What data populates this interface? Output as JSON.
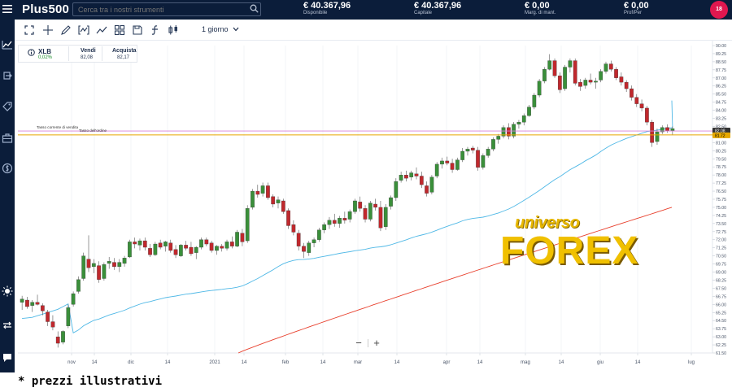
{
  "app": {
    "logo": "Plus500"
  },
  "search": {
    "placeholder": "Cerca tra i nostri strumenti"
  },
  "header_stats": [
    {
      "value": "€ 40.367,96",
      "label": "Disponibile"
    },
    {
      "value": "€ 40.367,96",
      "label": "Capitale"
    },
    {
      "value": "€ 0,00",
      "label": "Marg. di mant."
    },
    {
      "value": "€ 0,00",
      "label": "Prof/Per"
    }
  ],
  "avatar": {
    "badge": "18"
  },
  "toolbar": {
    "timeframe": "1 giorno"
  },
  "instrument": {
    "name": "XLB",
    "change": "0,02%",
    "sell_label": "Vendi",
    "sell_value": "82,08",
    "buy_label": "Acquista",
    "buy_value": "82,17"
  },
  "zoom": {
    "minus": "−",
    "plus": "+"
  },
  "footnote": "* prezzi illustrativi",
  "watermark": {
    "line1": "universo",
    "line2": "FOREX"
  },
  "colors": {
    "topbar": "#0b1d3a",
    "up": "#3a8f3a",
    "down": "#c0282d",
    "ma_fast": "#4fb8e6",
    "ma_slow": "#e8402d",
    "order_line": "#e6a800",
    "sell_line": "#d880d8"
  },
  "chart_data": {
    "type": "candlestick",
    "x_labels": [
      "nov",
      "14",
      "dic",
      "14",
      "2021",
      "14",
      "feb",
      "14",
      "mar",
      "14",
      "apr",
      "14",
      "mag",
      "14",
      "giu",
      "14",
      "lug"
    ],
    "y_ticks": [
      "90.00",
      "89.25",
      "88.50",
      "87.75",
      "87.00",
      "86.25",
      "85.50",
      "84.75",
      "84.00",
      "83.25",
      "82.50",
      "81.75",
      "81.00",
      "80.25",
      "79.50",
      "78.75",
      "78.00",
      "77.25",
      "76.50",
      "75.75",
      "75.00",
      "74.25",
      "73.50",
      "72.75",
      "72.00",
      "71.25",
      "70.50",
      "69.75",
      "69.00",
      "68.25",
      "67.50",
      "66.75",
      "66.00",
      "65.25",
      "64.50",
      "63.75",
      "63.00",
      "62.25",
      "61.50"
    ],
    "ylim": [
      61.5,
      90.0
    ],
    "price_tags": {
      "sell": "82.08",
      "order": "81.72"
    },
    "line_labels": {
      "sell": "Tasso corrente di vendita",
      "order": "Tasso dell'ordine"
    },
    "sell_rate": 82.08,
    "order_rate": 81.72,
    "candles": [
      [
        66.2,
        66.8,
        65.5,
        66.5
      ],
      [
        66.4,
        66.7,
        65.6,
        65.8
      ],
      [
        65.9,
        66.4,
        65.3,
        66.2
      ],
      [
        66.2,
        66.9,
        65.9,
        66.0
      ],
      [
        65.9,
        66.1,
        65.0,
        65.4
      ],
      [
        65.3,
        65.5,
        64.0,
        64.4
      ],
      [
        64.4,
        65.0,
        63.6,
        63.9
      ],
      [
        63.0,
        63.5,
        62.0,
        62.4
      ],
      [
        62.5,
        63.6,
        62.3,
        63.5
      ],
      [
        64.0,
        66.0,
        63.8,
        65.7
      ],
      [
        66.0,
        67.2,
        65.8,
        67.0
      ],
      [
        67.2,
        68.6,
        67.0,
        68.3
      ],
      [
        68.4,
        70.8,
        68.2,
        70.5
      ],
      [
        70.2,
        72.4,
        69.0,
        69.4
      ],
      [
        69.5,
        70.2,
        68.9,
        69.8
      ],
      [
        69.6,
        70.0,
        68.0,
        68.3
      ],
      [
        68.4,
        69.9,
        68.2,
        69.7
      ],
      [
        69.8,
        70.4,
        69.3,
        70.0
      ],
      [
        69.9,
        70.3,
        69.2,
        69.5
      ],
      [
        69.5,
        70.2,
        69.0,
        69.9
      ],
      [
        69.8,
        70.5,
        69.5,
        70.3
      ],
      [
        70.4,
        72.0,
        70.3,
        71.8
      ],
      [
        71.8,
        72.2,
        71.2,
        71.6
      ],
      [
        71.5,
        72.1,
        71.0,
        71.9
      ],
      [
        71.9,
        72.2,
        71.0,
        71.3
      ],
      [
        71.2,
        71.6,
        70.4,
        70.6
      ],
      [
        70.6,
        71.8,
        70.5,
        71.6
      ],
      [
        71.7,
        72.0,
        71.1,
        71.3
      ],
      [
        71.4,
        71.9,
        70.9,
        71.8
      ],
      [
        71.7,
        72.0,
        70.8,
        71.0
      ],
      [
        71.1,
        71.5,
        70.3,
        70.6
      ],
      [
        70.5,
        71.6,
        70.4,
        71.5
      ],
      [
        71.5,
        71.9,
        71.0,
        71.2
      ],
      [
        71.3,
        71.8,
        70.5,
        70.7
      ],
      [
        70.8,
        71.4,
        70.2,
        71.3
      ],
      [
        71.3,
        72.2,
        71.1,
        72.0
      ],
      [
        72.0,
        72.2,
        71.4,
        71.6
      ],
      [
        71.7,
        71.9,
        70.8,
        71.0
      ],
      [
        71.0,
        71.5,
        70.6,
        71.4
      ],
      [
        71.4,
        71.6,
        70.9,
        71.2
      ],
      [
        71.2,
        72.0,
        71.0,
        71.8
      ],
      [
        71.8,
        72.3,
        71.2,
        71.4
      ],
      [
        71.4,
        72.9,
        71.3,
        72.7
      ],
      [
        72.6,
        73.0,
        71.4,
        71.8
      ],
      [
        71.9,
        75.2,
        71.7,
        74.9
      ],
      [
        75.0,
        76.7,
        74.8,
        76.5
      ],
      [
        76.5,
        77.1,
        75.9,
        76.2
      ],
      [
        76.3,
        77.3,
        76.0,
        77.0
      ],
      [
        77.0,
        77.3,
        75.7,
        75.9
      ],
      [
        76.0,
        76.2,
        75.0,
        75.3
      ],
      [
        75.4,
        76.0,
        74.9,
        75.7
      ],
      [
        75.6,
        75.8,
        74.4,
        74.6
      ],
      [
        74.7,
        74.9,
        73.0,
        73.3
      ],
      [
        73.4,
        73.8,
        72.4,
        72.7
      ],
      [
        72.6,
        72.9,
        71.0,
        71.4
      ],
      [
        71.4,
        71.7,
        70.3,
        70.9
      ],
      [
        70.8,
        71.9,
        70.5,
        71.7
      ],
      [
        71.7,
        72.2,
        71.3,
        72.0
      ],
      [
        72.0,
        73.1,
        71.8,
        72.9
      ],
      [
        72.9,
        73.6,
        72.6,
        73.4
      ],
      [
        73.4,
        74.1,
        73.0,
        73.8
      ],
      [
        73.8,
        74.4,
        73.2,
        73.5
      ],
      [
        73.5,
        74.2,
        73.1,
        74.0
      ],
      [
        74.0,
        74.6,
        73.5,
        73.8
      ],
      [
        73.9,
        74.8,
        73.6,
        74.6
      ],
      [
        74.6,
        75.8,
        74.4,
        75.6
      ],
      [
        75.5,
        76.0,
        74.6,
        74.9
      ],
      [
        74.9,
        75.2,
        73.6,
        73.9
      ],
      [
        73.9,
        75.6,
        73.7,
        75.4
      ],
      [
        75.3,
        75.8,
        74.7,
        75.0
      ],
      [
        75.0,
        75.6,
        72.8,
        73.1
      ],
      [
        73.2,
        75.3,
        72.9,
        75.0
      ],
      [
        75.1,
        76.1,
        74.8,
        75.9
      ],
      [
        75.9,
        77.7,
        75.6,
        77.4
      ],
      [
        77.5,
        78.3,
        77.3,
        78.0
      ],
      [
        78.0,
        78.4,
        77.4,
        77.7
      ],
      [
        77.8,
        78.4,
        77.5,
        78.2
      ],
      [
        78.1,
        78.7,
        77.6,
        77.9
      ],
      [
        77.9,
        78.3,
        76.8,
        77.1
      ],
      [
        77.0,
        77.4,
        76.0,
        76.3
      ],
      [
        76.4,
        78.0,
        76.2,
        77.8
      ],
      [
        77.9,
        79.2,
        77.7,
        79.0
      ],
      [
        79.0,
        79.6,
        78.6,
        79.3
      ],
      [
        79.3,
        79.7,
        78.9,
        79.1
      ],
      [
        79.1,
        79.5,
        78.2,
        78.5
      ],
      [
        78.5,
        79.6,
        78.4,
        79.4
      ],
      [
        79.4,
        80.5,
        79.2,
        80.2
      ],
      [
        80.2,
        80.6,
        79.8,
        80.4
      ],
      [
        80.5,
        80.7,
        80.0,
        80.3
      ],
      [
        80.3,
        80.6,
        78.4,
        78.7
      ],
      [
        78.7,
        80.0,
        78.5,
        79.8
      ],
      [
        79.8,
        80.6,
        79.6,
        80.4
      ],
      [
        80.4,
        81.5,
        80.2,
        81.3
      ],
      [
        81.3,
        81.8,
        80.9,
        81.6
      ],
      [
        81.6,
        82.6,
        81.4,
        82.4
      ],
      [
        82.4,
        82.8,
        81.3,
        81.6
      ],
      [
        81.6,
        82.9,
        81.4,
        82.7
      ],
      [
        82.7,
        83.1,
        82.3,
        82.9
      ],
      [
        82.9,
        83.7,
        82.6,
        83.5
      ],
      [
        83.5,
        84.5,
        83.4,
        84.3
      ],
      [
        84.3,
        85.6,
        84.1,
        85.4
      ],
      [
        85.4,
        86.9,
        85.2,
        86.7
      ],
      [
        86.7,
        88.0,
        86.5,
        87.8
      ],
      [
        87.8,
        89.2,
        87.7,
        88.6
      ],
      [
        88.6,
        88.8,
        87.0,
        87.2
      ],
      [
        87.2,
        87.5,
        85.6,
        85.9
      ],
      [
        86.0,
        88.2,
        85.8,
        88.0
      ],
      [
        88.0,
        88.8,
        87.5,
        88.6
      ],
      [
        88.6,
        88.8,
        86.3,
        86.5
      ],
      [
        86.6,
        86.9,
        85.8,
        86.2
      ],
      [
        86.3,
        87.0,
        86.0,
        86.8
      ],
      [
        86.8,
        87.4,
        86.4,
        86.6
      ],
      [
        86.6,
        87.0,
        86.0,
        86.7
      ],
      [
        86.8,
        87.8,
        86.6,
        87.6
      ],
      [
        87.6,
        88.5,
        87.4,
        88.3
      ],
      [
        88.3,
        88.6,
        87.6,
        87.8
      ],
      [
        87.8,
        88.0,
        86.8,
        87.0
      ],
      [
        87.1,
        87.5,
        86.3,
        86.6
      ],
      [
        86.6,
        86.8,
        85.7,
        86.0
      ],
      [
        86.0,
        86.3,
        84.9,
        85.2
      ],
      [
        85.2,
        85.5,
        84.3,
        84.6
      ],
      [
        84.6,
        85.0,
        83.9,
        84.2
      ],
      [
        84.2,
        84.4,
        82.6,
        82.9
      ],
      [
        82.9,
        83.1,
        80.6,
        81.0
      ],
      [
        81.1,
        82.3,
        80.8,
        82.0
      ],
      [
        82.0,
        82.6,
        81.8,
        82.4
      ],
      [
        82.4,
        82.7,
        81.9,
        82.1
      ],
      [
        82.1,
        82.5,
        81.7,
        82.3
      ]
    ]
  }
}
